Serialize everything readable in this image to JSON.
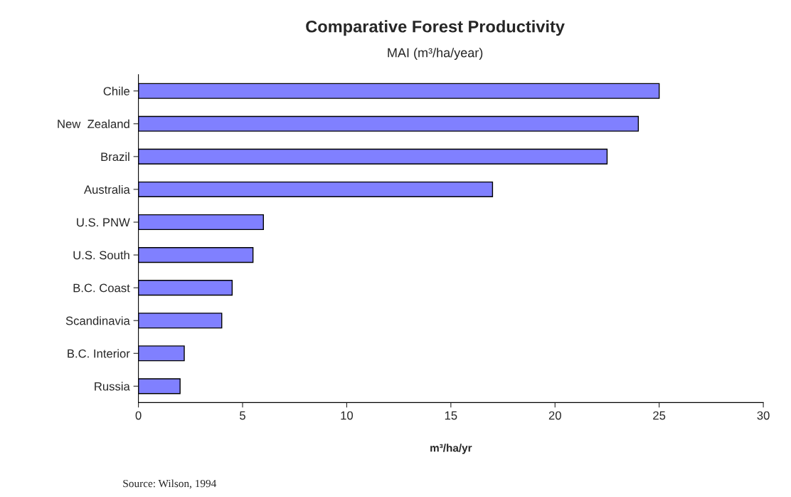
{
  "chart_data": {
    "type": "bar",
    "orientation": "horizontal",
    "title": "Comparative Forest Productivity",
    "subtitle": "MAI (m³/ha/year)",
    "xlabel": "m³/ha/yr",
    "categories": [
      "Chile",
      "New  Zealand",
      "Brazil",
      "Australia",
      "U.S. PNW",
      "U.S. South",
      "B.C. Coast",
      "Scandinavia",
      "B.C. Interior",
      "Russia"
    ],
    "values": [
      25,
      24,
      22.5,
      17,
      6,
      5.5,
      4.5,
      4,
      2.2,
      2
    ],
    "color": "#8080ff",
    "xlim": [
      0,
      30
    ],
    "xticks": [
      0,
      5,
      10,
      15,
      20,
      25,
      30
    ],
    "grid": false,
    "annotations": [
      "Source: Wilson, 1994"
    ]
  }
}
